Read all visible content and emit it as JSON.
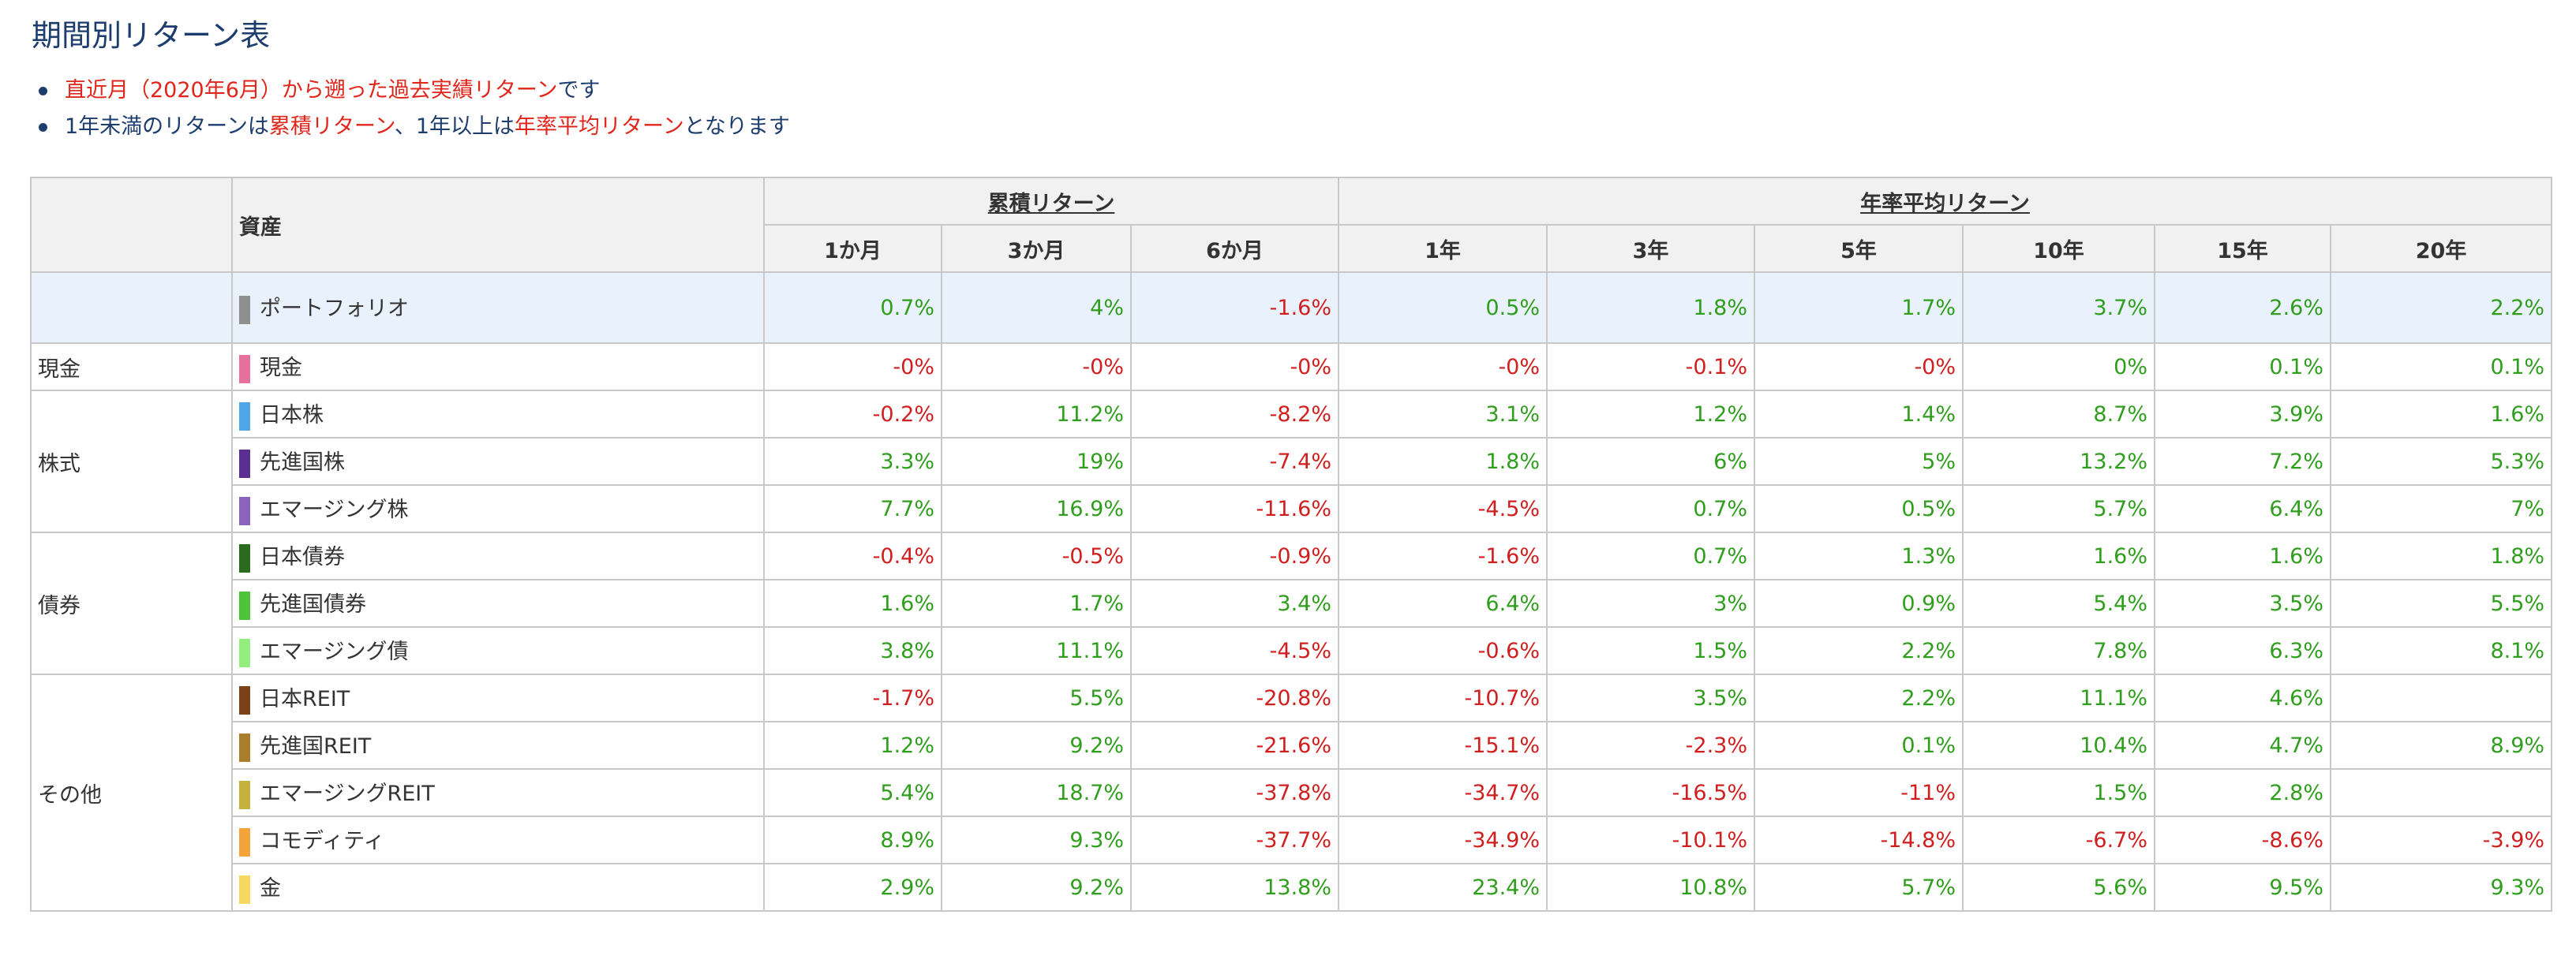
{
  "title": "期間別リターン表",
  "notes": {
    "n1": {
      "a": "直近月（2020年6月）から遡った過去実績リターン",
      "b": "です"
    },
    "n2": {
      "a": "1年未満のリターンは",
      "b": "累積リターン",
      "c": "、1年以上は",
      "d": "年率平均リターン",
      "e": "となります"
    }
  },
  "header": {
    "asset": "資産",
    "cumulative": "累積リターン",
    "annual": "年率平均リターン",
    "periods": [
      "1か月",
      "3か月",
      "6か月",
      "1年",
      "3年",
      "5年",
      "10年",
      "15年",
      "20年"
    ]
  },
  "colors": {
    "positive": "#2e9e1c",
    "negative": "#d11f1f",
    "portfolio_bg": "#e9f1fd"
  },
  "portfolio": {
    "name": "ポートフォリオ",
    "color": "#8f8f8f",
    "values": [
      "0.7%",
      "4%",
      "-1.6%",
      "0.5%",
      "1.8%",
      "1.7%",
      "3.7%",
      "2.6%",
      "2.2%"
    ]
  },
  "groups": [
    {
      "category": "現金",
      "assets": [
        {
          "name": "現金",
          "color": "#e8719c",
          "values": [
            "-0%",
            "-0%",
            "-0%",
            "-0%",
            "-0.1%",
            "-0%",
            "0%",
            "0.1%",
            "0.1%"
          ]
        }
      ]
    },
    {
      "category": "株式",
      "assets": [
        {
          "name": "日本株",
          "color": "#4da7e8",
          "values": [
            "-0.2%",
            "11.2%",
            "-8.2%",
            "3.1%",
            "1.2%",
            "1.4%",
            "8.7%",
            "3.9%",
            "1.6%"
          ]
        },
        {
          "name": "先進国株",
          "color": "#5b2f91",
          "values": [
            "3.3%",
            "19%",
            "-7.4%",
            "1.8%",
            "6%",
            "5%",
            "13.2%",
            "7.2%",
            "5.3%"
          ]
        },
        {
          "name": "エマージング株",
          "color": "#8a63bd",
          "values": [
            "7.7%",
            "16.9%",
            "-11.6%",
            "-4.5%",
            "0.7%",
            "0.5%",
            "5.7%",
            "6.4%",
            "7%"
          ]
        }
      ]
    },
    {
      "category": "債券",
      "assets": [
        {
          "name": "日本債券",
          "color": "#2b6b1e",
          "values": [
            "-0.4%",
            "-0.5%",
            "-0.9%",
            "-1.6%",
            "0.7%",
            "1.3%",
            "1.6%",
            "1.6%",
            "1.8%"
          ]
        },
        {
          "name": "先進国債券",
          "color": "#4fc23c",
          "values": [
            "1.6%",
            "1.7%",
            "3.4%",
            "6.4%",
            "3%",
            "0.9%",
            "5.4%",
            "3.5%",
            "5.5%"
          ]
        },
        {
          "name": "エマージング債",
          "color": "#93ee7e",
          "values": [
            "3.8%",
            "11.1%",
            "-4.5%",
            "-0.6%",
            "1.5%",
            "2.2%",
            "7.8%",
            "6.3%",
            "8.1%"
          ]
        }
      ]
    },
    {
      "category": "その他",
      "assets": [
        {
          "name": "日本REIT",
          "color": "#7a4216",
          "values": [
            "-1.7%",
            "5.5%",
            "-20.8%",
            "-10.7%",
            "3.5%",
            "2.2%",
            "11.1%",
            "4.6%",
            ""
          ]
        },
        {
          "name": "先進国REIT",
          "color": "#a97d2c",
          "values": [
            "1.2%",
            "9.2%",
            "-21.6%",
            "-15.1%",
            "-2.3%",
            "0.1%",
            "10.4%",
            "4.7%",
            "8.9%"
          ]
        },
        {
          "name": "エマージングREIT",
          "color": "#c4b23a",
          "values": [
            "5.4%",
            "18.7%",
            "-37.8%",
            "-34.7%",
            "-16.5%",
            "-11%",
            "1.5%",
            "2.8%",
            ""
          ]
        },
        {
          "name": "コモディティ",
          "color": "#f2a33a",
          "values": [
            "8.9%",
            "9.3%",
            "-37.7%",
            "-34.9%",
            "-10.1%",
            "-14.8%",
            "-6.7%",
            "-8.6%",
            "-3.9%"
          ]
        },
        {
          "name": "金",
          "color": "#f7d85e",
          "values": [
            "2.9%",
            "9.2%",
            "13.8%",
            "23.4%",
            "10.8%",
            "5.7%",
            "5.6%",
            "9.5%",
            "9.3%"
          ]
        }
      ]
    }
  ]
}
